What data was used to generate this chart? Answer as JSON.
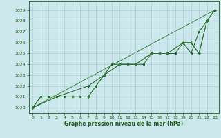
{
  "background_color": "#cce8ed",
  "grid_color": "#aaccd4",
  "line_color_dark": "#1a5c1a",
  "line_color_med": "#2d7a2d",
  "xlabel": "Graphe pression niveau de la mer (hPa)",
  "xlim": [
    -0.5,
    23.5
  ],
  "ylim": [
    1019.5,
    1029.8
  ],
  "yticks": [
    1020,
    1021,
    1022,
    1023,
    1024,
    1025,
    1026,
    1027,
    1028,
    1029
  ],
  "xticks": [
    0,
    1,
    2,
    3,
    4,
    5,
    6,
    7,
    8,
    9,
    10,
    11,
    12,
    13,
    14,
    15,
    16,
    17,
    18,
    19,
    20,
    21,
    22,
    23
  ],
  "series1_x": [
    0,
    1,
    2,
    3,
    4,
    5,
    6,
    7,
    8,
    9,
    10,
    11,
    12,
    13,
    14,
    15,
    16,
    17,
    18,
    19,
    20,
    21,
    22,
    23
  ],
  "series1_y": [
    1020.0,
    1021.0,
    1021.0,
    1021.0,
    1021.0,
    1021.0,
    1021.0,
    1021.0,
    1022.0,
    1023.0,
    1024.0,
    1024.0,
    1024.0,
    1024.0,
    1024.0,
    1025.0,
    1025.0,
    1025.0,
    1025.0,
    1026.0,
    1025.0,
    1027.0,
    1028.0,
    1029.0
  ],
  "series2_x": [
    0,
    1,
    3,
    5,
    7,
    9,
    11,
    13,
    15,
    17,
    19,
    20,
    21,
    22,
    23
  ],
  "series2_y": [
    1020.0,
    1021.0,
    1021.0,
    1021.0,
    1021.0,
    1023.0,
    1024.0,
    1024.0,
    1025.0,
    1025.0,
    1026.0,
    1026.0,
    1025.0,
    1028.0,
    1029.0
  ],
  "series3_x": [
    0,
    3,
    7,
    9,
    11,
    13,
    15,
    17,
    19,
    20,
    21,
    22,
    23
  ],
  "series3_y": [
    1020.0,
    1021.0,
    1022.0,
    1023.0,
    1024.0,
    1024.0,
    1025.0,
    1025.0,
    1026.0,
    1026.0,
    1025.0,
    1028.0,
    1029.0
  ],
  "series4_x": [
    0,
    23
  ],
  "series4_y": [
    1020.0,
    1029.0
  ]
}
